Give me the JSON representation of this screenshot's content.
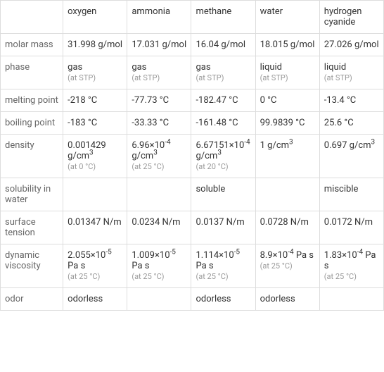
{
  "table": {
    "columns": [
      "",
      "oxygen",
      "ammonia",
      "methane",
      "water",
      "hydrogen cyanide"
    ],
    "rows": [
      {
        "prop": "molar mass",
        "cells": [
          {
            "main": "31.998 g/mol",
            "sub": ""
          },
          {
            "main": "17.031 g/mol",
            "sub": ""
          },
          {
            "main": "16.04 g/mol",
            "sub": ""
          },
          {
            "main": "18.015 g/mol",
            "sub": ""
          },
          {
            "main": "27.026 g/mol",
            "sub": ""
          }
        ]
      },
      {
        "prop": "phase",
        "cells": [
          {
            "main": "gas",
            "sub": "(at STP)"
          },
          {
            "main": "gas",
            "sub": "(at STP)"
          },
          {
            "main": "gas",
            "sub": "(at STP)"
          },
          {
            "main": "liquid",
            "sub": "(at STP)"
          },
          {
            "main": "liquid",
            "sub": "(at STP)"
          }
        ]
      },
      {
        "prop": "melting point",
        "cells": [
          {
            "main": "-218 °C",
            "sub": ""
          },
          {
            "main": "-77.73 °C",
            "sub": ""
          },
          {
            "main": "-182.47 °C",
            "sub": ""
          },
          {
            "main": "0 °C",
            "sub": ""
          },
          {
            "main": "-13.4 °C",
            "sub": ""
          }
        ]
      },
      {
        "prop": "boiling point",
        "cells": [
          {
            "main": "-183 °C",
            "sub": ""
          },
          {
            "main": "-33.33 °C",
            "sub": ""
          },
          {
            "main": "-161.48 °C",
            "sub": ""
          },
          {
            "main": "99.9839 °C",
            "sub": ""
          },
          {
            "main": "25.6 °C",
            "sub": ""
          }
        ]
      },
      {
        "prop": "density",
        "cells": [
          {
            "main_html": "0.001429 g/cm<span class='sup'>3</span>",
            "sub": "(at 0 °C)"
          },
          {
            "main_html": "6.96×10<span class='sup'>-4</span> g/cm<span class='sup'>3</span>",
            "sub": "(at 25 °C)"
          },
          {
            "main_html": "6.67151×10<span class='sup'>-4</span> g/cm<span class='sup'>3</span>",
            "sub": "(at 20 °C)"
          },
          {
            "main_html": "1 g/cm<span class='sup'>3</span>",
            "sub": ""
          },
          {
            "main_html": "0.697 g/cm<span class='sup'>3</span>",
            "sub": ""
          }
        ]
      },
      {
        "prop": "solubility in water",
        "cells": [
          {
            "main": "",
            "sub": ""
          },
          {
            "main": "",
            "sub": ""
          },
          {
            "main": "soluble",
            "sub": ""
          },
          {
            "main": "",
            "sub": ""
          },
          {
            "main": "miscible",
            "sub": ""
          }
        ]
      },
      {
        "prop": "surface tension",
        "cells": [
          {
            "main": "0.01347 N/m",
            "sub": ""
          },
          {
            "main": "0.0234 N/m",
            "sub": ""
          },
          {
            "main": "0.0137 N/m",
            "sub": ""
          },
          {
            "main": "0.0728 N/m",
            "sub": ""
          },
          {
            "main": "0.0172 N/m",
            "sub": ""
          }
        ]
      },
      {
        "prop": "dynamic viscosity",
        "cells": [
          {
            "main_html": "2.055×10<span class='sup'>-5</span> Pa s",
            "sub": "(at 25 °C)"
          },
          {
            "main_html": "1.009×10<span class='sup'>-5</span> Pa s",
            "sub": "(at 25 °C)"
          },
          {
            "main_html": "1.114×10<span class='sup'>-5</span> Pa s",
            "sub": "(at 25 °C)"
          },
          {
            "main_html": "8.9×10<span class='sup'>-4</span> Pa s",
            "sub": "(at 25 °C)"
          },
          {
            "main_html": "1.83×10<span class='sup'>-4</span> Pa s",
            "sub": "(at 25 °C)"
          }
        ]
      },
      {
        "prop": "odor",
        "cells": [
          {
            "main": "odorless",
            "sub": ""
          },
          {
            "main": "",
            "sub": ""
          },
          {
            "main": "odorless",
            "sub": ""
          },
          {
            "main": "odorless",
            "sub": ""
          },
          {
            "main": "",
            "sub": ""
          }
        ]
      }
    ],
    "border_color": "#dddddd",
    "text_color": "#333333",
    "minor_text_color": "#999999",
    "prop_text_color": "#666666",
    "background_color": "#ffffff",
    "font_size": 13,
    "minor_font_size": 11
  }
}
